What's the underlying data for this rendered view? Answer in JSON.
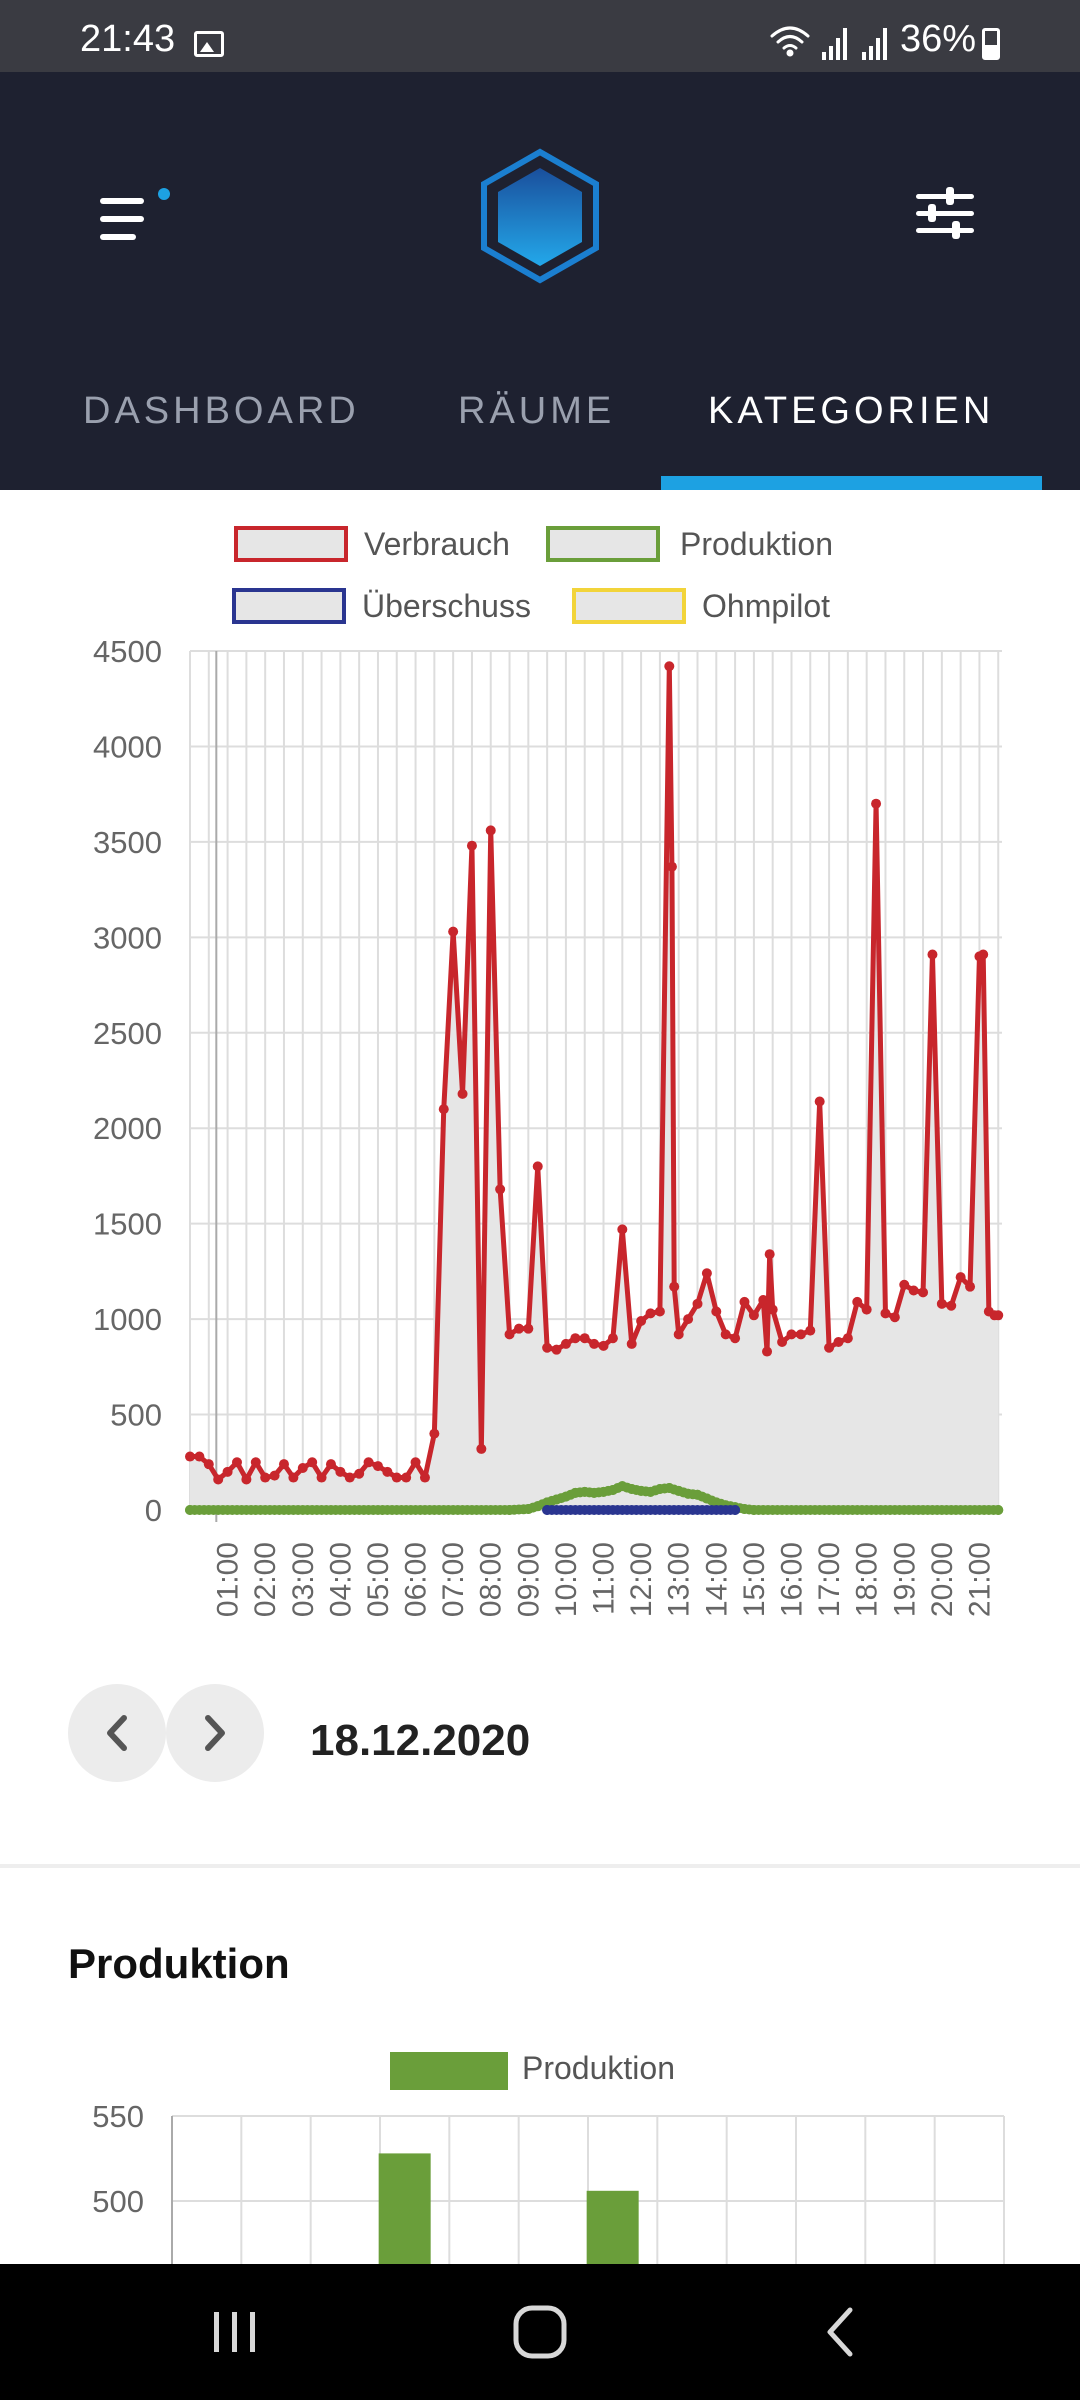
{
  "status_bar": {
    "time": "21:43",
    "battery": "36%",
    "icons": [
      "gallery-icon",
      "wifi-icon",
      "signal-icon",
      "signal-icon",
      "battery-icon"
    ]
  },
  "header": {
    "tabs": [
      {
        "label": "DASHBOARD",
        "active": false
      },
      {
        "label": "RÄUME",
        "active": false
      },
      {
        "label": "KATEGORIEN",
        "active": true
      }
    ],
    "accent_color": "#1da1e2",
    "background_color": "#1e2130"
  },
  "energy_chart": {
    "date": "18.12.2020",
    "legend": [
      {
        "label": "Verbrauch",
        "color": "#c8262c"
      },
      {
        "label": "Produktion",
        "color": "#6a9e3a"
      },
      {
        "label": "Überschuss",
        "color": "#2a3590"
      },
      {
        "label": "Ohmpilot",
        "color": "#f2d43a"
      }
    ]
  },
  "production_section": {
    "title": "Produktion",
    "legend_label": "Produktion"
  },
  "chart_data": [
    {
      "type": "line",
      "xlabel": "",
      "ylabel": "",
      "ylim": [
        0,
        4500
      ],
      "yticks": [
        0,
        500,
        1000,
        1500,
        2000,
        2500,
        3000,
        3500,
        4000,
        4500
      ],
      "xticks": [
        "01:00",
        "02:00",
        "03:00",
        "04:00",
        "05:00",
        "06:00",
        "07:00",
        "08:00",
        "09:00",
        "10:00",
        "11:00",
        "12:00",
        "13:00",
        "14:00",
        "15:00",
        "16:00",
        "17:00",
        "18:00",
        "19:00",
        "20:00",
        "21:00"
      ],
      "xlim": [
        0.0,
        21.6
      ],
      "grid": true,
      "legend_position": "top",
      "series": [
        {
          "name": "Verbrauch",
          "color": "#c8262c",
          "x": [
            0.0,
            0.25,
            0.5,
            0.75,
            1.0,
            1.25,
            1.5,
            1.75,
            2.0,
            2.25,
            2.5,
            2.75,
            3.0,
            3.25,
            3.5,
            3.75,
            4.0,
            4.25,
            4.5,
            4.75,
            5.0,
            5.25,
            5.5,
            5.75,
            6.0,
            6.25,
            6.5,
            6.75,
            7.0,
            7.25,
            7.5,
            7.75,
            8.0,
            8.25,
            8.5,
            8.75,
            9.0,
            9.25,
            9.5,
            9.75,
            10.0,
            10.25,
            10.5,
            10.75,
            11.0,
            11.25,
            11.5,
            11.75,
            12.0,
            12.25,
            12.5,
            12.75,
            12.82,
            12.88,
            13.0,
            13.25,
            13.5,
            13.75,
            14.0,
            14.25,
            14.5,
            14.75,
            15.0,
            15.25,
            15.35,
            15.42,
            15.5,
            15.75,
            16.0,
            16.25,
            16.5,
            16.75,
            17.0,
            17.25,
            17.5,
            17.75,
            18.0,
            18.25,
            18.5,
            18.75,
            19.0,
            19.25,
            19.5,
            19.75,
            20.0,
            20.25,
            20.5,
            20.75,
            21.0,
            21.1,
            21.25,
            21.4,
            21.5
          ],
          "values": [
            280,
            280,
            240,
            160,
            200,
            250,
            160,
            250,
            170,
            180,
            240,
            170,
            220,
            250,
            170,
            240,
            200,
            170,
            190,
            250,
            230,
            200,
            170,
            170,
            250,
            170,
            400,
            2100,
            3030,
            2180,
            3480,
            320,
            3560,
            1680,
            920,
            950,
            950,
            1800,
            850,
            840,
            870,
            900,
            900,
            870,
            860,
            900,
            1470,
            870,
            990,
            1030,
            1040,
            4420,
            3370,
            1170,
            920,
            1000,
            1080,
            1240,
            1040,
            920,
            900,
            1090,
            1020,
            1100,
            830,
            1340,
            1050,
            880,
            920,
            920,
            940,
            2140,
            850,
            880,
            900,
            1090,
            1050,
            3700,
            1030,
            1010,
            1180,
            1150,
            1140,
            2910,
            1080,
            1070,
            1220,
            1170,
            2900,
            2910,
            1040,
            1020,
            1020
          ]
        },
        {
          "name": "Produktion",
          "color": "#6a9e3a",
          "x": [
            0.0,
            8.5,
            9.0,
            9.25,
            9.5,
            9.75,
            10.0,
            10.25,
            10.5,
            10.75,
            11.0,
            11.25,
            11.5,
            11.75,
            12.0,
            12.25,
            12.5,
            12.75,
            13.0,
            13.25,
            13.5,
            13.75,
            14.0,
            14.25,
            14.5,
            14.75,
            15.0,
            21.5
          ],
          "values": [
            0,
            0,
            5,
            20,
            40,
            55,
            70,
            90,
            95,
            90,
            95,
            105,
            125,
            110,
            100,
            95,
            110,
            115,
            100,
            85,
            80,
            60,
            40,
            25,
            15,
            5,
            0,
            0
          ]
        },
        {
          "name": "Überschuss",
          "color": "#2a3590",
          "x": [
            9.5,
            14.5
          ],
          "values": [
            0,
            0
          ]
        },
        {
          "name": "Ohmpilot",
          "color": "#f2d43a",
          "x": [],
          "values": []
        }
      ]
    },
    {
      "type": "bar",
      "ylim": [
        450,
        550
      ],
      "yticks": [
        500,
        550
      ],
      "grid": true,
      "legend_position": "top",
      "series": [
        {
          "name": "Produktion",
          "color": "#6a9e3a",
          "categories": [
            3,
            6
          ],
          "values": [
            528,
            506
          ]
        }
      ]
    }
  ]
}
